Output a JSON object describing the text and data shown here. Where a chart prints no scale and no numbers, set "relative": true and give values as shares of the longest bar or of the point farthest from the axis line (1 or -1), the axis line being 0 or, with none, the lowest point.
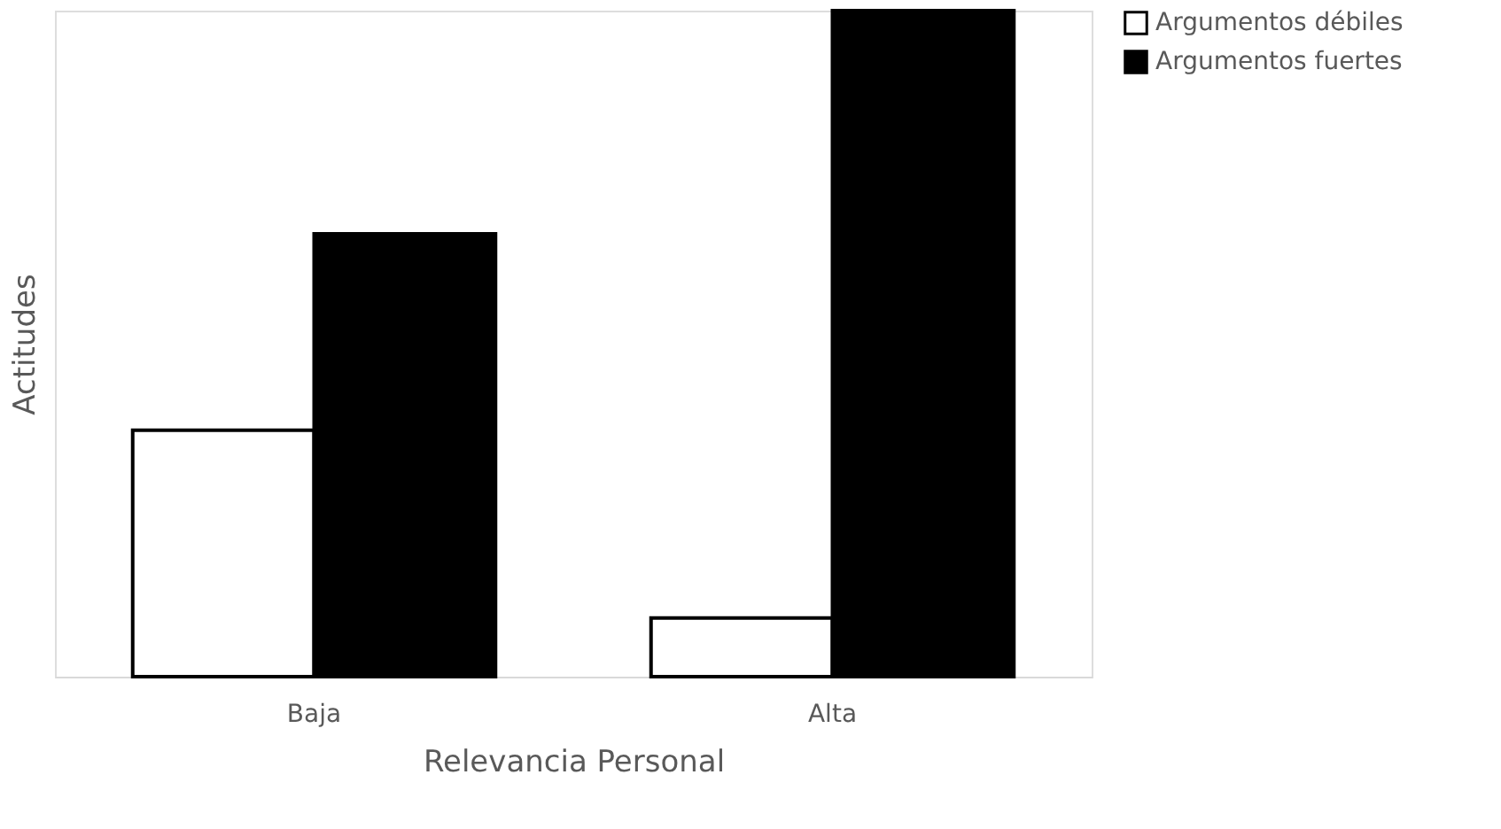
{
  "chart_data": {
    "type": "bar",
    "xlabel": "Relevancia Personal",
    "ylabel": "Actitudes",
    "relative": true,
    "categories": [
      "Baja",
      "Alta"
    ],
    "series": [
      {
        "name": "Argumentos débiles",
        "color": "#ffffff",
        "values": [
          0.37,
          0.088
        ]
      },
      {
        "name": "Argumentos fuertes",
        "color": "#000000",
        "values": [
          0.665,
          1
        ]
      }
    ],
    "legend": "right",
    "grid": false
  }
}
